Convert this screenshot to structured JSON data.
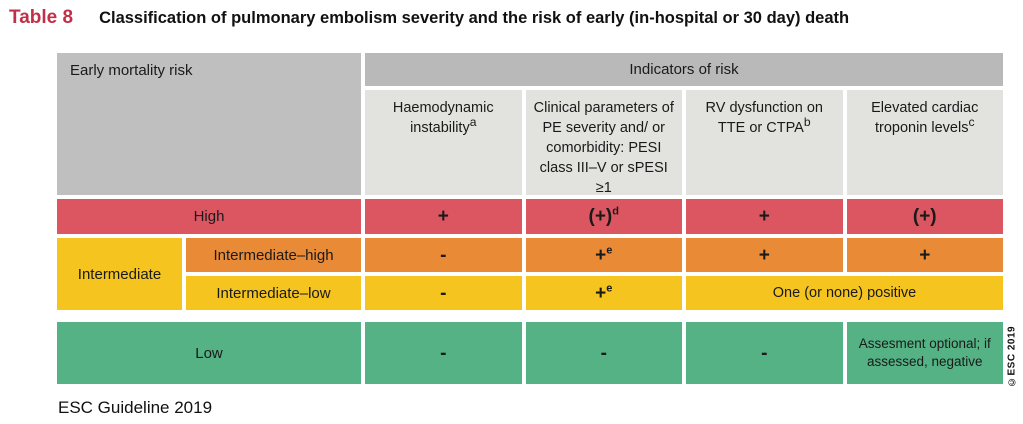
{
  "title": {
    "tag": "Table 8",
    "text": "Classification of pulmonary embolism severity and the risk of early (in-hospital or 30 day) death"
  },
  "table": {
    "corner_header": "Early mortality risk",
    "banner": "Indicators of risk",
    "columns": [
      {
        "text": "Haemodynamic instability",
        "sup": "a"
      },
      {
        "text": "Clinical parameters of PE severity and/ or comorbidity: PESI class III–V or sPESI ≥1",
        "sup": ""
      },
      {
        "text": "RV dysfunction on TTE or CTPA",
        "sup": "b"
      },
      {
        "text": "Elevated cardiac troponin levels",
        "sup": "c"
      }
    ],
    "rows": {
      "high": {
        "label": "High",
        "cells": [
          {
            "text": "+",
            "sup": ""
          },
          {
            "text": "(+)",
            "sup": "d"
          },
          {
            "text": "+",
            "sup": ""
          },
          {
            "text": "(+)",
            "sup": ""
          }
        ]
      },
      "intermediate_group_label": "Intermediate",
      "intermediate_high": {
        "label": "Intermediate–high",
        "cells": [
          {
            "text": "-",
            "sup": ""
          },
          {
            "text": "+",
            "sup": "e"
          },
          {
            "text": "+",
            "sup": ""
          },
          {
            "text": "+",
            "sup": ""
          }
        ]
      },
      "intermediate_low": {
        "label": "Intermediate–low",
        "cells": [
          {
            "text": "-",
            "sup": ""
          },
          {
            "text": "+",
            "sup": "e"
          },
          {
            "text": "One (or none) positive",
            "sup": ""
          }
        ]
      },
      "low": {
        "label": "Low",
        "cells": [
          {
            "text": "-",
            "sup": ""
          },
          {
            "text": "-",
            "sup": ""
          },
          {
            "text": "-",
            "sup": ""
          },
          {
            "text": "Assesment optional; if assessed, negative",
            "sup": ""
          }
        ]
      }
    }
  },
  "footer": "ESC Guideline 2019",
  "watermark": "©ESC 2019",
  "colors": {
    "title-accent": "#c13049",
    "row-high": "#dc5662",
    "row-intermediate-high": "#e98b36",
    "row-intermediate-low": "#f5c41f",
    "row-low": "#54b284",
    "header-banner": "#b9b9b9",
    "header-corner": "#bfbfbf",
    "header-column": "#e2e2df",
    "text": "#1a1a1a"
  }
}
